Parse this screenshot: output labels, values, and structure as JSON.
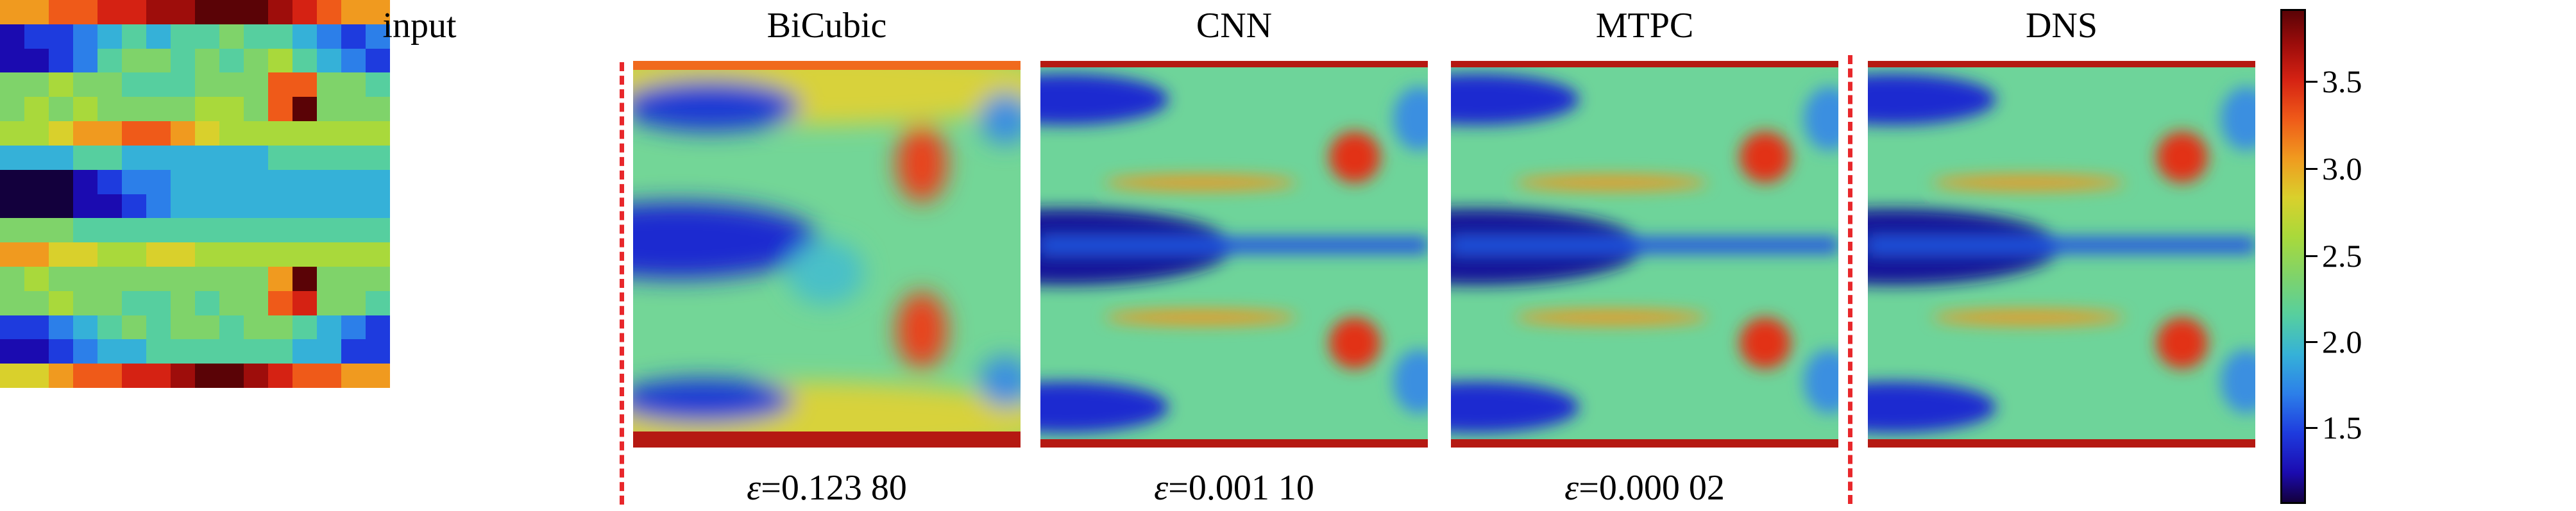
{
  "panels": [
    {
      "title": "input",
      "caption": ""
    },
    {
      "title": "BiCubic",
      "caption_prefix": "ε",
      "caption_value": "=0.123 80"
    },
    {
      "title": "CNN",
      "caption_prefix": "ε",
      "caption_value": "=0.001 10"
    },
    {
      "title": "MTPC",
      "caption_prefix": "ε",
      "caption_value": "=0.000 02"
    },
    {
      "title": "DNS",
      "caption": ""
    }
  ],
  "colorbar": {
    "ticks": [
      "3.5",
      "3.0",
      "2.5",
      "2.0",
      "1.5"
    ]
  }
}
